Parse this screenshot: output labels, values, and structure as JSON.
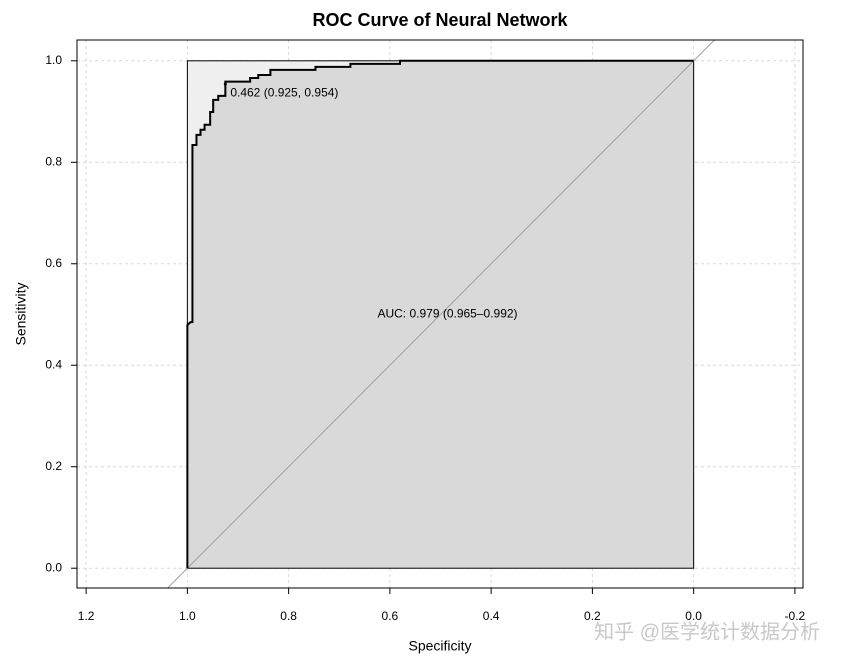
{
  "chart_data": {
    "type": "roc",
    "title": "ROC Curve of Neural Network",
    "x_label": "Specificity",
    "y_label": "Sensitivity",
    "xlim": [
      1.218,
      -0.216
    ],
    "ylim": [
      -0.039,
      1.041
    ],
    "xticks": [
      1.2,
      {
        "value": 1.0,
        "label": "1.0"
      },
      0.8,
      0.6,
      0.4,
      0.2,
      {
        "value": 0.0,
        "label": "0.0"
      },
      -0.2
    ],
    "yticks": [
      {
        "value": 0.0,
        "label": "0.0"
      },
      0.2,
      0.4,
      0.6,
      0.8,
      {
        "value": 1.0,
        "label": "1.0"
      }
    ],
    "grid": true,
    "series": [
      {
        "color": "#000000",
        "x": [
          1,
          1,
          0.994,
          0.99,
          0.99,
          0.982,
          0.982,
          0.974,
          0.974,
          0.966,
          0.966,
          0.955,
          0.955,
          0.949,
          0.949,
          0.939,
          0.939,
          0.925,
          0.925,
          0.876,
          0.876,
          0.86,
          0.86,
          0.836,
          0.836,
          0.747,
          0.747,
          0.678,
          0.678,
          0.58,
          0.58,
          0
        ],
        "y": [
          0,
          0.479,
          0.485,
          0.485,
          0.834,
          0.834,
          0.854,
          0.854,
          0.864,
          0.864,
          0.874,
          0.874,
          0.899,
          0.899,
          0.923,
          0.923,
          0.931,
          0.931,
          0.959,
          0.959,
          0.966,
          0.966,
          0.972,
          0.972,
          0.982,
          0.982,
          0.988,
          0.988,
          0.994,
          0.994,
          1,
          1
        ]
      }
    ],
    "threshold": {
      "specificity": 0.925,
      "sensitivity": 0.954,
      "label": "0.462 (0.925, 0.954)"
    },
    "auc_label": "AUC: 0.979 (0.965–0.992)",
    "watermark": "知乎 @医学统计数据分析"
  }
}
